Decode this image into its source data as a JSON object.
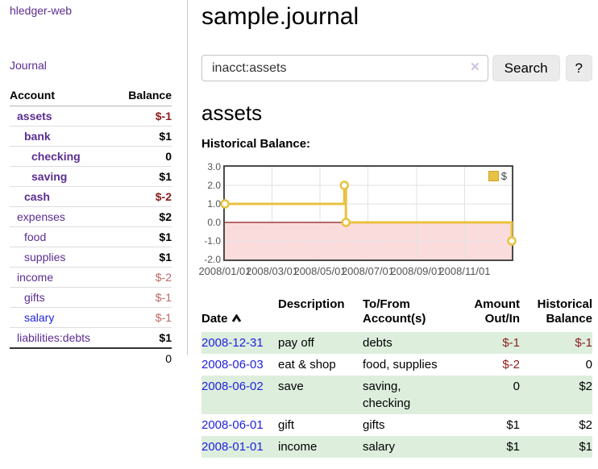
{
  "sidebar": {
    "brand": "hledger-web",
    "nav_journal": "Journal",
    "headers": {
      "account": "Account",
      "balance": "Balance"
    },
    "rows": [
      {
        "account": "assets",
        "balance": "$-1"
      },
      {
        "account": "bank",
        "balance": "$1"
      },
      {
        "account": "checking",
        "balance": "0"
      },
      {
        "account": "saving",
        "balance": "$1"
      },
      {
        "account": "cash",
        "balance": "$-2"
      },
      {
        "account": "expenses",
        "balance": "$2"
      },
      {
        "account": "food",
        "balance": "$1"
      },
      {
        "account": "supplies",
        "balance": "$1"
      },
      {
        "account": "income",
        "balance": "$-2"
      },
      {
        "account": "gifts",
        "balance": "$-1"
      },
      {
        "account": "salary",
        "balance": "$-1"
      },
      {
        "account": "liabilities:debts",
        "balance": "$1"
      }
    ],
    "total": "0"
  },
  "main": {
    "title": "sample.journal",
    "search": {
      "value": "inacct:assets",
      "clear_label": "✕",
      "button": "Search",
      "help_button": "?"
    },
    "account_heading": "assets",
    "chart_label": "Historical Balance:"
  },
  "journal": {
    "headers": {
      "date": "Date",
      "description": "Description",
      "accounts": "To/From\nAccount(s)",
      "amount": "Amount\nOut/In",
      "balance": "Historical\nBalance"
    },
    "rows": [
      {
        "date": "2008-12-31",
        "description": "pay off",
        "accounts": "debts",
        "amount": "$-1",
        "balance": "$-1"
      },
      {
        "date": "2008-06-03",
        "description": "eat & shop",
        "accounts": "food, supplies",
        "amount": "$-2",
        "balance": "0"
      },
      {
        "date": "2008-06-02",
        "description": "save",
        "accounts": "saving,\nchecking",
        "amount": "0",
        "balance": "$2"
      },
      {
        "date": "2008-06-01",
        "description": "gift",
        "accounts": "gifts",
        "amount": "$1",
        "balance": "$2"
      },
      {
        "date": "2008-01-01",
        "description": "income",
        "accounts": "salary",
        "amount": "$1",
        "balance": "$1"
      }
    ]
  },
  "chart_data": {
    "type": "line",
    "step": true,
    "title": "Historical Balance",
    "legend": "$",
    "legend_position": "top-right",
    "grid": true,
    "xlim": [
      "2008-01-01",
      "2008-12-31"
    ],
    "ylim": [
      -2.0,
      3.0
    ],
    "x_ticks": [
      "2008/01/01",
      "2008/03/01",
      "2008/05/01",
      "2008/07/01",
      "2008/09/01",
      "2008/11/01"
    ],
    "y_ticks": [
      3.0,
      2.0,
      1.0,
      0.0,
      -1.0,
      -2.0
    ],
    "series": [
      {
        "name": "$",
        "color": "#e8c240",
        "points": [
          [
            "2008-01-01",
            1.0
          ],
          [
            "2008-06-01",
            2.0
          ],
          [
            "2008-06-03",
            0.0
          ],
          [
            "2008-12-31",
            -1.0
          ]
        ]
      }
    ],
    "negative_zone": true,
    "negative_fill": "#fbdcdc",
    "zero_line_color": "#8b1a1a",
    "grid_color": "#e2e2e2"
  },
  "colors": {
    "purple": "#5b2d91",
    "blue": "#2222dd",
    "neg_strong": "#8b1d1d",
    "neg_light": "#c06767",
    "green_row": "#ddeedd",
    "gold": "#e8c240"
  }
}
